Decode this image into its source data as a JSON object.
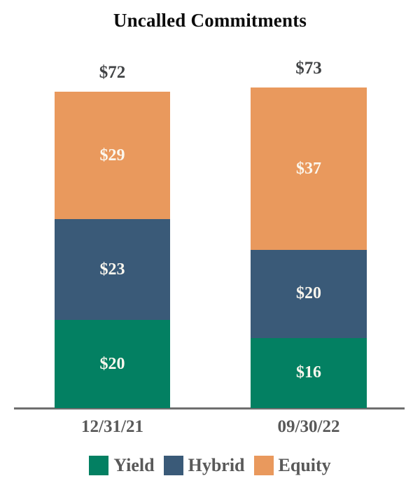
{
  "chart_data": {
    "type": "bar",
    "stacked": true,
    "title": "Uncalled Commitments",
    "categories": [
      "12/31/21",
      "09/30/22"
    ],
    "series": [
      {
        "name": "Yield",
        "color": "#038062",
        "values": [
          20,
          16
        ]
      },
      {
        "name": "Hybrid",
        "color": "#3A5A78",
        "values": [
          23,
          20
        ]
      },
      {
        "name": "Equity",
        "color": "#E9995D",
        "values": [
          29,
          37
        ]
      }
    ],
    "totals": [
      72,
      73
    ],
    "total_labels": [
      "$72",
      "$73"
    ],
    "segment_labels": [
      [
        "$20",
        "$23",
        "$29"
      ],
      [
        "$16",
        "$20",
        "$37"
      ]
    ],
    "value_prefix": "$",
    "ylim": [
      0,
      73
    ],
    "grid": false,
    "legend_position": "bottom",
    "legend": [
      "Yield",
      "Hybrid",
      "Equity"
    ]
  },
  "colors": {
    "title_text": "#0c0c0c",
    "total_label_text": "#414345",
    "segment_label_text": "#FBF7EE",
    "axis_line": "#6e6e6e",
    "category_label_text": "#595959",
    "legend_text": "#595959",
    "background": "#ffffff"
  }
}
